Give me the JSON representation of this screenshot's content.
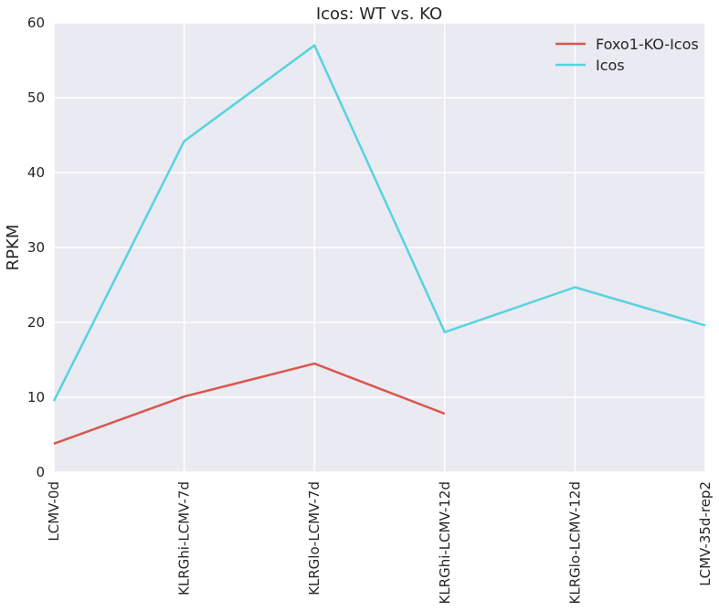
{
  "chart_data": {
    "type": "line",
    "title": "Icos: WT vs. KO",
    "xlabel": "",
    "ylabel": "RPKM",
    "ylim": [
      0,
      60
    ],
    "yticks": [
      0,
      10,
      20,
      30,
      40,
      50,
      60
    ],
    "grid": true,
    "legend_position": "top-right",
    "categories": [
      "LCMV-0d",
      "KLRGhi-LCMV-7d",
      "KLRGlo-LCMV-7d",
      "KLRGhi-LCMV-12d",
      "KLRGlo-LCMV-12d",
      "LCMV-35d-rep2"
    ],
    "series": [
      {
        "name": "Foxo1-KO-Icos",
        "color": "#d9574e",
        "values": [
          3.8,
          10.1,
          14.5,
          7.8,
          null,
          null
        ]
      },
      {
        "name": "Icos",
        "color": "#55d4de",
        "values": [
          9.5,
          44.2,
          57.0,
          18.7,
          24.7,
          19.6
        ]
      }
    ],
    "colors": {
      "background": "#eaeaf2",
      "grid": "#ffffff"
    }
  }
}
